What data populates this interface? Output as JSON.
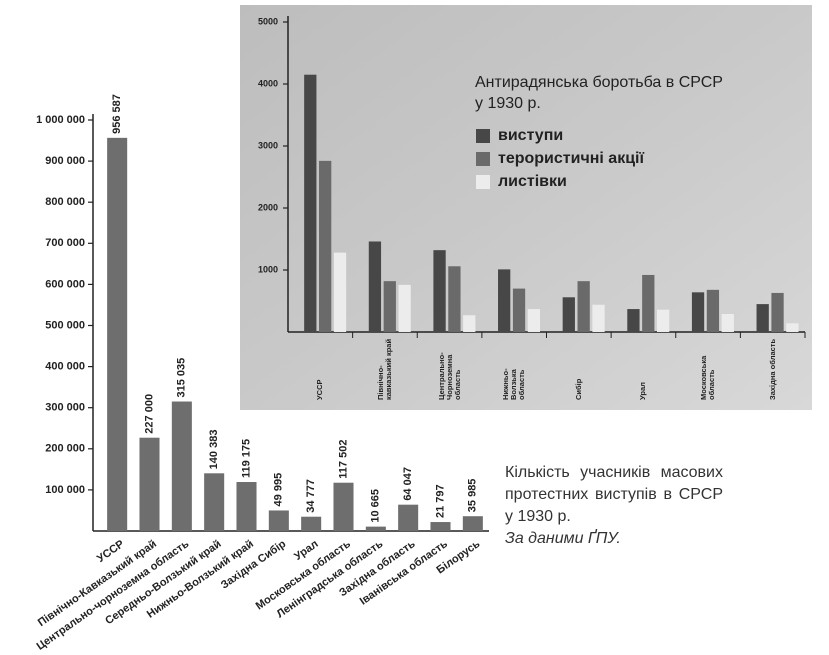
{
  "chart_data": [
    {
      "type": "bar",
      "categories": [
        "УССР",
        "Північно-Кавказький край",
        "Центрально-чорноземна область",
        "Середньо-Волзький край",
        "Нижньо-Волзький край",
        "Західна Сибір",
        "Урал",
        "Московська область",
        "Ленінградська область",
        "Західна область",
        "Іванівська область",
        "Білорусь"
      ],
      "values": [
        956587,
        227000,
        315035,
        140383,
        119175,
        49995,
        34777,
        117502,
        10665,
        64047,
        21797,
        35985
      ],
      "value_labels": [
        "956 587",
        "227 000",
        "315 035",
        "140 383",
        "119 175",
        "49 995",
        "34 777",
        "117 502",
        "10 665",
        "64 047",
        "21 797",
        "35 985"
      ],
      "color": "#6e6e6e",
      "ylim": [
        0,
        1000000
      ],
      "yticks": [
        {
          "value": 100000,
          "label": "100 000"
        },
        {
          "value": 200000,
          "label": "200 000"
        },
        {
          "value": 300000,
          "label": "300 000"
        },
        {
          "value": 400000,
          "label": "400 000"
        },
        {
          "value": 500000,
          "label": "500 000"
        },
        {
          "value": 600000,
          "label": "600 000"
        },
        {
          "value": 700000,
          "label": "700 000"
        },
        {
          "value": 800000,
          "label": "800 000"
        },
        {
          "value": 900000,
          "label": "900 000"
        },
        {
          "value": 1000000,
          "label": "1 000 000"
        }
      ]
    },
    {
      "type": "bar",
      "title": "Антирадянська боротьба в СРСР у 1930 р.",
      "categories": [
        "УССР",
        "Північно-кавказький край",
        "Центрально-Чорноземна область",
        "Нижньо-Волзька область",
        "Сибір",
        "Урал",
        "Московська область",
        "Західна область"
      ],
      "series": [
        {
          "name": "виступи",
          "color": "#474747",
          "values": [
            4150,
            1460,
            1320,
            1010,
            560,
            370,
            640,
            450
          ]
        },
        {
          "name": "терористичні акції",
          "color": "#6a6a6a",
          "values": [
            2760,
            820,
            1060,
            700,
            820,
            920,
            680,
            630
          ]
        },
        {
          "name": "листівки",
          "color": "#ececec",
          "values": [
            1280,
            760,
            270,
            370,
            440,
            360,
            290,
            140
          ]
        }
      ],
      "ylim": [
        0,
        5000
      ],
      "yticks": [
        1000,
        2000,
        3000,
        4000,
        5000
      ]
    }
  ],
  "caption": {
    "text": "Кількість учасників масових протестних виступів в СРСР у 1930 р.",
    "source": "За даними ҐПУ."
  }
}
